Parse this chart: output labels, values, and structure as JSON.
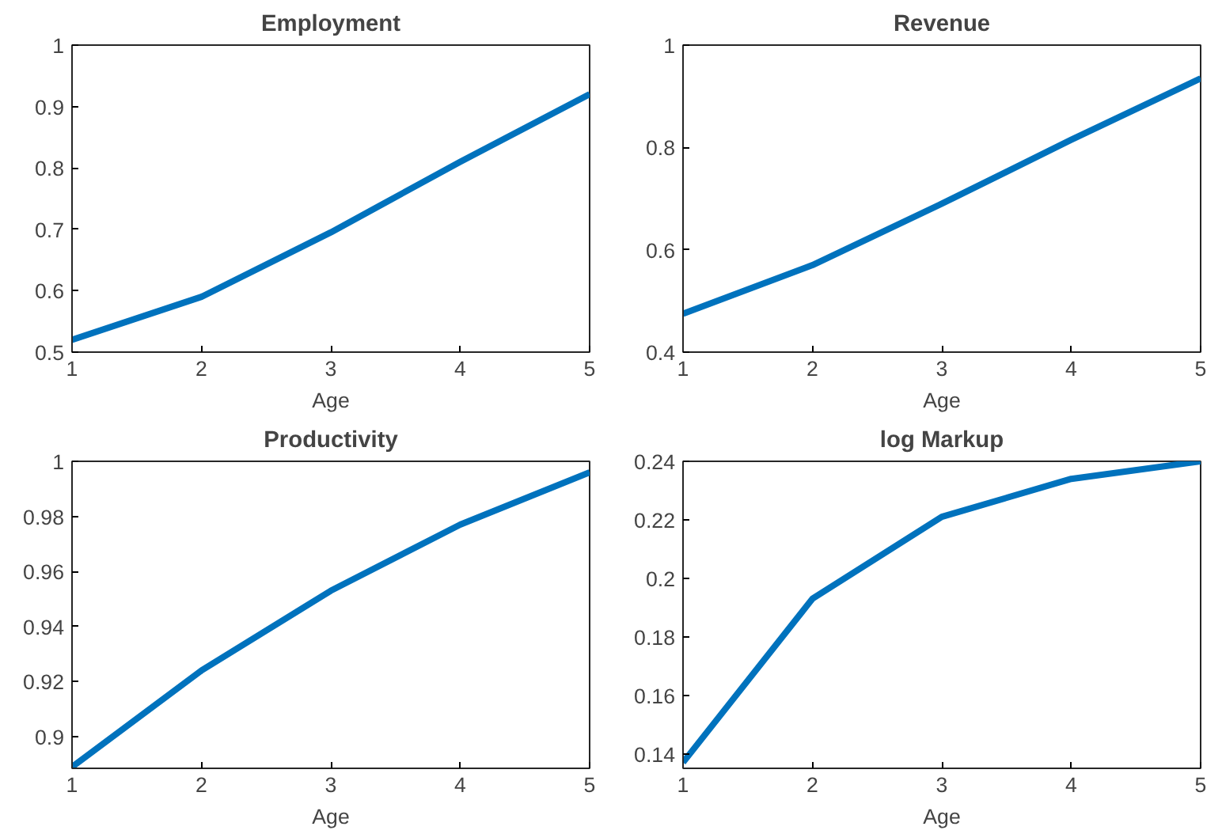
{
  "chart_data": [
    {
      "type": "line",
      "title": "Employment",
      "xlabel": "Age",
      "x": [
        1,
        2,
        3,
        4,
        5
      ],
      "xlim": [
        1,
        5
      ],
      "xticks": [
        1,
        2,
        3,
        4,
        5
      ],
      "ylim": [
        0.5,
        1
      ],
      "yticks": [
        0.5,
        0.6,
        0.7,
        0.8,
        0.9,
        1
      ],
      "grid": false,
      "series": [
        {
          "color": "#0072bd",
          "values": [
            0.52,
            0.59,
            0.695,
            0.81,
            0.92
          ]
        }
      ]
    },
    {
      "type": "line",
      "title": "Revenue",
      "xlabel": "Age",
      "x": [
        1,
        2,
        3,
        4,
        5
      ],
      "xlim": [
        1,
        5
      ],
      "xticks": [
        1,
        2,
        3,
        4,
        5
      ],
      "ylim": [
        0.4,
        1
      ],
      "yticks": [
        0.4,
        0.6,
        0.8,
        1
      ],
      "grid": false,
      "series": [
        {
          "color": "#0072bd",
          "values": [
            0.475,
            0.57,
            0.69,
            0.815,
            0.935
          ]
        }
      ]
    },
    {
      "type": "line",
      "title": "Productivity",
      "xlabel": "Age",
      "x": [
        1,
        2,
        3,
        4,
        5
      ],
      "xlim": [
        1,
        5
      ],
      "xticks": [
        1,
        2,
        3,
        4,
        5
      ],
      "ylim": [
        0.8885,
        1
      ],
      "yticks": [
        0.9,
        0.92,
        0.94,
        0.96,
        0.98,
        1
      ],
      "grid": false,
      "series": [
        {
          "color": "#0072bd",
          "values": [
            0.889,
            0.924,
            0.953,
            0.977,
            0.996
          ]
        }
      ]
    },
    {
      "type": "line",
      "title": "log Markup",
      "xlabel": "Age",
      "x": [
        1,
        2,
        3,
        4,
        5
      ],
      "xlim": [
        1,
        5
      ],
      "xticks": [
        1,
        2,
        3,
        4,
        5
      ],
      "ylim": [
        0.135,
        0.24
      ],
      "yticks": [
        0.14,
        0.16,
        0.18,
        0.2,
        0.22,
        0.24
      ],
      "grid": false,
      "series": [
        {
          "color": "#0072bd",
          "values": [
            0.137,
            0.193,
            0.221,
            0.234,
            0.24
          ]
        }
      ]
    }
  ]
}
